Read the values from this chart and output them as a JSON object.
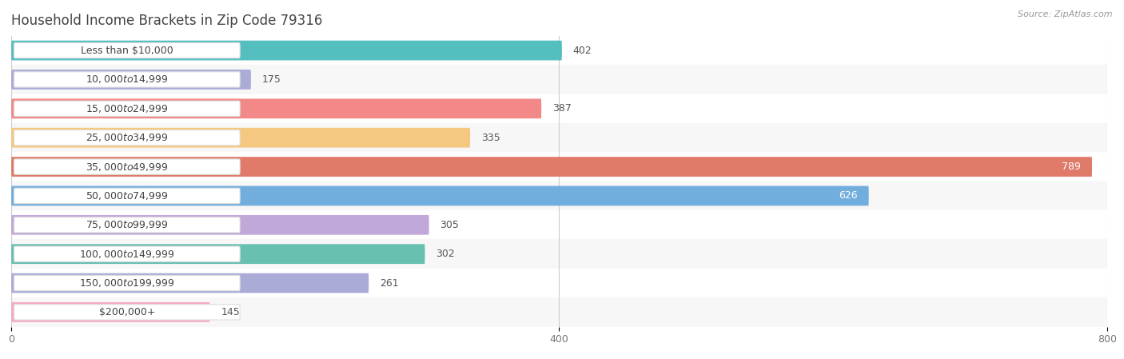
{
  "title": "Household Income Brackets in Zip Code 79316",
  "source": "Source: ZipAtlas.com",
  "categories": [
    "Less than $10,000",
    "$10,000 to $14,999",
    "$15,000 to $24,999",
    "$25,000 to $34,999",
    "$35,000 to $49,999",
    "$50,000 to $74,999",
    "$75,000 to $99,999",
    "$100,000 to $149,999",
    "$150,000 to $199,999",
    "$200,000+"
  ],
  "values": [
    402,
    175,
    387,
    335,
    789,
    626,
    305,
    302,
    261,
    145
  ],
  "bar_colors": [
    "#55BFBF",
    "#ABABD8",
    "#F28888",
    "#F5C882",
    "#E07B6A",
    "#72AEDD",
    "#C0A8D8",
    "#68C0B0",
    "#ABABD8",
    "#F5AABF"
  ],
  "background_color": "#ffffff",
  "row_alt_color": "#f7f7f7",
  "xlim": [
    0,
    800
  ],
  "xticks": [
    0,
    400,
    800
  ],
  "title_fontsize": 12,
  "source_fontsize": 8,
  "label_fontsize": 9,
  "value_fontsize": 9,
  "bar_height": 0.68
}
